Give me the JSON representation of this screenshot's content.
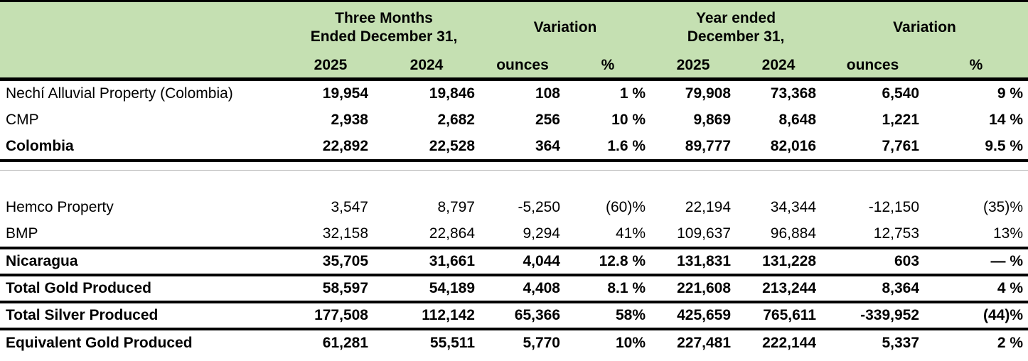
{
  "colors": {
    "header_bg": "#c5e0b2",
    "rule": "#000000",
    "hairline": "#b0b0b0",
    "text": "#000000",
    "background": "#ffffff"
  },
  "header": {
    "groups": [
      {
        "label": "Three Months\nEnded December 31,",
        "span": 2
      },
      {
        "label": "Variation",
        "span": 2
      },
      {
        "label": "Year ended\nDecember 31,",
        "span": 2
      },
      {
        "label": "Variation",
        "span": 2
      }
    ],
    "columns": [
      "2025",
      "2024",
      "ounces",
      "%",
      "2025",
      "2024",
      "ounces",
      "%"
    ]
  },
  "rows": [
    {
      "type": "data",
      "label": "Nechí Alluvial Property (Colombia)",
      "label_bold": false,
      "values_bold": true,
      "values": [
        "19,954",
        "19,846",
        "108",
        "1 %",
        "79,908",
        "73,368",
        "6,540",
        "9 %"
      ],
      "border_bottom": "none"
    },
    {
      "type": "data",
      "label": "CMP",
      "label_bold": false,
      "values_bold": true,
      "values": [
        "2,938",
        "2,682",
        "256",
        "10 %",
        "9,869",
        "8,648",
        "1,221",
        "14 %"
      ],
      "border_bottom": "none"
    },
    {
      "type": "data",
      "label": "Colombia",
      "label_bold": true,
      "values_bold": true,
      "values": [
        "22,892",
        "22,528",
        "364",
        "1.6 %",
        "89,777",
        "82,016",
        "7,761",
        "9.5 %"
      ],
      "border_bottom": "thick"
    },
    {
      "type": "spacer-hairline"
    },
    {
      "type": "spacer-blank"
    },
    {
      "type": "data",
      "label": "Hemco Property",
      "label_bold": false,
      "values_bold": false,
      "values": [
        "3,547",
        "8,797",
        "-5,250",
        "(60)%",
        "22,194",
        "34,344",
        "-12,150",
        "(35)%"
      ],
      "border_bottom": "none"
    },
    {
      "type": "data",
      "label": "BMP",
      "label_bold": false,
      "values_bold": false,
      "values": [
        "32,158",
        "22,864",
        "9,294",
        "41%",
        "109,637",
        "96,884",
        "12,753",
        "13%"
      ],
      "border_bottom": "thick"
    },
    {
      "type": "data",
      "label": "Nicaragua",
      "label_bold": true,
      "values_bold": true,
      "values": [
        "35,705",
        "31,661",
        "4,044",
        "12.8 %",
        "131,831",
        "131,228",
        "603",
        "— %"
      ],
      "border_bottom": "thick"
    },
    {
      "type": "data",
      "label": "Total Gold Produced",
      "label_bold": true,
      "values_bold": true,
      "values": [
        "58,597",
        "54,189",
        "4,408",
        "8.1 %",
        "221,608",
        "213,244",
        "8,364",
        "4 %"
      ],
      "border_bottom": "thick"
    },
    {
      "type": "data",
      "label": "Total Silver Produced",
      "label_bold": true,
      "values_bold": true,
      "values": [
        "177,508",
        "112,142",
        "65,366",
        "58%",
        "425,659",
        "765,611",
        "-339,952",
        "(44)%"
      ],
      "border_bottom": "thick"
    },
    {
      "type": "data",
      "label": "Equivalent Gold Produced",
      "label_bold": true,
      "values_bold": true,
      "values": [
        "61,281",
        "55,511",
        "5,770",
        "10%",
        "227,481",
        "222,144",
        "5,337",
        "2 %"
      ],
      "border_bottom": "none"
    }
  ]
}
